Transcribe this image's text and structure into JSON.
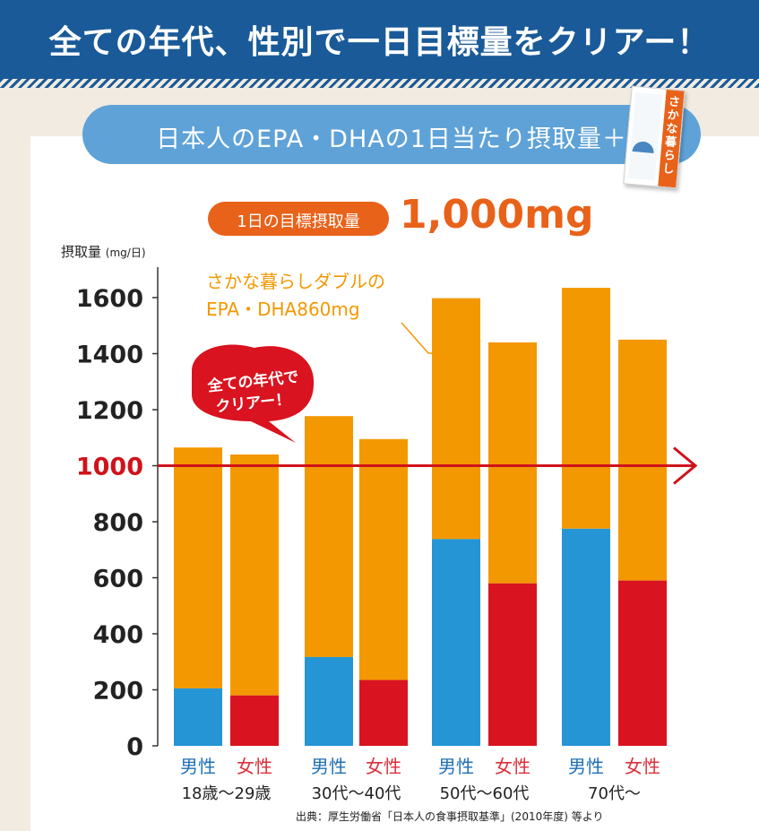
{
  "header": {
    "title": "全ての年代、性別で一日目標量をクリアー！"
  },
  "subtitle_pill": "日本人のEPA・DHAの1日当たり摂取量＋",
  "product_pack": {
    "name": "さかな暮らし"
  },
  "target": {
    "label": "1日の目標摂取量",
    "value": "1,000mg"
  },
  "supplement_label": [
    "さかな暮らしダブルの",
    "EPA・DHA860mg"
  ],
  "bubble_text": [
    "全ての年代で",
    "クリアー！"
  ],
  "source_note": "出典：厚生労働省「日本人の食事摂取基準」(2010年度) 等より",
  "colors": {
    "male": "#2595d6",
    "female": "#d9131f",
    "supplement": "#f39800",
    "threshold": "#d0121b",
    "header": "#1a5a98"
  },
  "chart_data": {
    "type": "bar",
    "stacked": true,
    "ylabel": "摂取量",
    "yunit": "(mg/日)",
    "ylim": [
      0,
      1700
    ],
    "yticks": [
      0,
      200,
      400,
      600,
      800,
      1000,
      1200,
      1400,
      1600
    ],
    "threshold": 1000,
    "groups": [
      "18歳〜29歳",
      "30代〜40代",
      "50代〜60代",
      "70代〜"
    ],
    "sex_labels": [
      "男性",
      "女性"
    ],
    "categories": [
      "男性 18歳〜29歳",
      "女性 18歳〜29歳",
      "男性 30代〜40代",
      "女性 30代〜40代",
      "男性 50代〜60代",
      "女性 50代〜60代",
      "男性 70代〜",
      "女性 70代〜"
    ],
    "base_values": [
      205,
      180,
      317,
      235,
      738,
      580,
      775,
      590
    ],
    "supplement_value": 860
  }
}
